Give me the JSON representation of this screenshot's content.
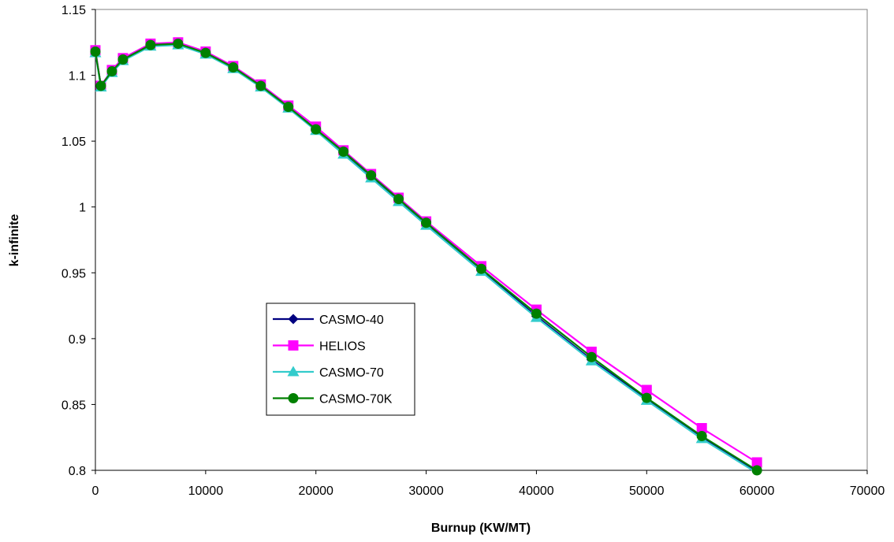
{
  "chart_data": {
    "type": "line",
    "title": "",
    "xlabel": "Burnup (KW/MT)",
    "ylabel": "k-infinite",
    "xlim": [
      0,
      70000
    ],
    "ylim": [
      0.8,
      1.15
    ],
    "xticks": [
      0,
      10000,
      20000,
      30000,
      40000,
      50000,
      60000,
      70000
    ],
    "yticks": [
      0.8,
      0.85,
      0.9,
      0.95,
      1,
      1.05,
      1.1,
      1.15
    ],
    "xtick_labels": [
      "0",
      "10000",
      "20000",
      "30000",
      "40000",
      "50000",
      "60000",
      "70000"
    ],
    "ytick_labels": [
      "0.8",
      "0.85",
      "0.9",
      "0.95",
      "1",
      "1.05",
      "1.1",
      "1.15"
    ],
    "grid": false,
    "legend_position": "center-left",
    "x": [
      0,
      500,
      1500,
      2500,
      5000,
      7500,
      10000,
      12500,
      15000,
      17500,
      20000,
      22500,
      25000,
      27500,
      30000,
      35000,
      40000,
      45000,
      50000,
      55000,
      60000
    ],
    "series": [
      {
        "name": "CASMO-40",
        "color": "#000080",
        "marker": "diamond",
        "values": [
          1.118,
          1.092,
          1.103,
          1.112,
          1.123,
          1.124,
          1.117,
          1.106,
          1.092,
          1.076,
          1.059,
          1.041,
          1.023,
          1.005,
          0.987,
          0.952,
          0.917,
          0.884,
          0.854,
          0.825,
          0.799
        ]
      },
      {
        "name": "HELIOS",
        "color": "#ff00ff",
        "marker": "square",
        "values": [
          1.119,
          1.092,
          1.104,
          1.113,
          1.124,
          1.125,
          1.118,
          1.107,
          1.093,
          1.077,
          1.061,
          1.043,
          1.025,
          1.007,
          0.989,
          0.955,
          0.922,
          0.89,
          0.861,
          0.832,
          0.806
        ]
      },
      {
        "name": "CASMO-70",
        "color": "#33cccc",
        "marker": "triangle",
        "values": [
          1.117,
          1.091,
          1.102,
          1.111,
          1.122,
          1.123,
          1.116,
          1.105,
          1.091,
          1.075,
          1.058,
          1.04,
          1.022,
          1.004,
          0.986,
          0.951,
          0.916,
          0.883,
          0.853,
          0.824,
          0.798
        ]
      },
      {
        "name": "CASMO-70K",
        "color": "#008000",
        "marker": "circle",
        "values": [
          1.118,
          1.092,
          1.103,
          1.112,
          1.123,
          1.124,
          1.117,
          1.106,
          1.092,
          1.076,
          1.059,
          1.042,
          1.024,
          1.006,
          0.988,
          0.953,
          0.919,
          0.886,
          0.855,
          0.826,
          0.8
        ]
      }
    ]
  }
}
